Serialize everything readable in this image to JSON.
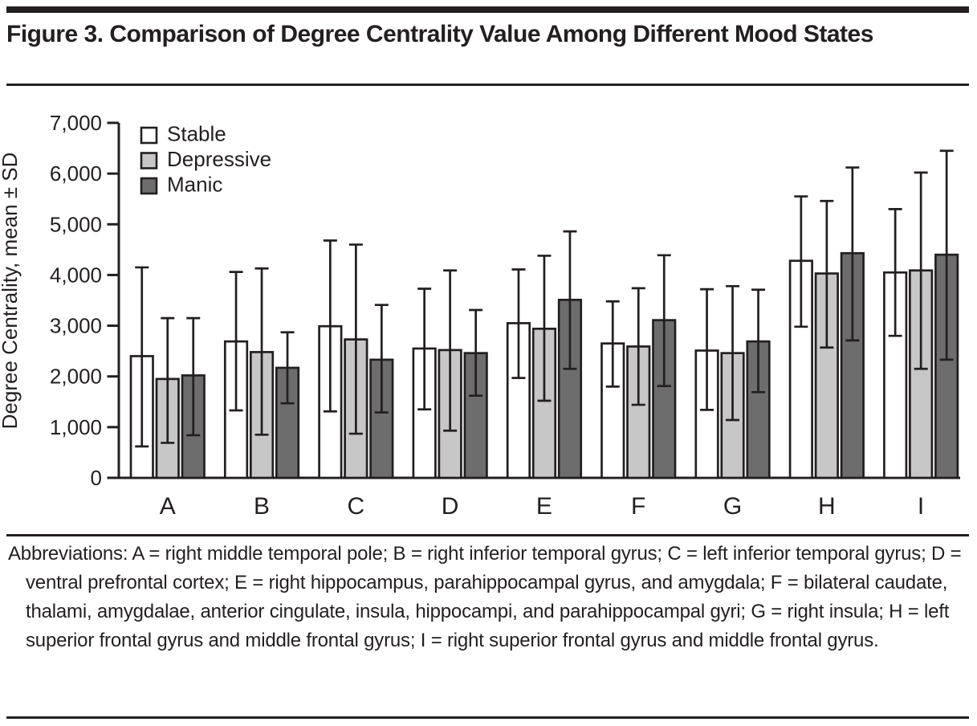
{
  "page": {
    "title": "Figure 3. Comparison of Degree Centrality Value Among Different Mood States",
    "footnote": "Abbreviations: A = right middle temporal pole; B = right inferior temporal gyrus; C = left inferior temporal gyrus; D = ventral prefrontal cortex; E = right hippocampus, parahippocampal gyrus, and amygdala; F = bilateral caudate, thalami, amygdalae, anterior cingulate, insula, hippocampi, and parahippocampal gyri; G = right insula; H = left superior frontal gyrus and middle frontal gyrus; I = right superior frontal gyrus and middle frontal gyrus."
  },
  "colors": {
    "text": "#231f20",
    "rule": "#231f20",
    "bar_outline": "#231f20",
    "stable_fill": "#ffffff",
    "depressive_fill": "#c7c7c7",
    "manic_fill": "#6d6d6d"
  },
  "chart_data": {
    "type": "bar",
    "title": "",
    "xlabel": "",
    "ylabel": "Degree Centrality, mean ± SD",
    "categories": [
      "A",
      "B",
      "C",
      "D",
      "E",
      "F",
      "G",
      "H",
      "I"
    ],
    "ylim": [
      0,
      7000
    ],
    "ytick_step": 1000,
    "ytick_labels": [
      "0",
      "1,000",
      "2,000",
      "3,000",
      "4,000",
      "5,000",
      "6,000",
      "7,000"
    ],
    "grid": false,
    "legend_position": "top-left-inside",
    "error_bars": "mean ± SD whiskers with caps",
    "series": [
      {
        "name": "Stable",
        "fill": "#ffffff",
        "values": [
          2400,
          2690,
          2990,
          2550,
          3050,
          2650,
          2510,
          4280,
          4050
        ],
        "err_low": [
          620,
          1330,
          1310,
          1350,
          1970,
          1800,
          1340,
          2980,
          2800
        ],
        "err_high": [
          4150,
          4060,
          4680,
          3730,
          4110,
          3480,
          3720,
          5550,
          5300
        ]
      },
      {
        "name": "Depressive",
        "fill": "#c7c7c7",
        "values": [
          1950,
          2480,
          2730,
          2520,
          2940,
          2590,
          2460,
          4030,
          4090
        ],
        "err_low": [
          690,
          850,
          870,
          930,
          1520,
          1440,
          1140,
          2570,
          2150
        ],
        "err_high": [
          3150,
          4130,
          4600,
          4090,
          4380,
          3740,
          3780,
          5460,
          6020
        ]
      },
      {
        "name": "Manic",
        "fill": "#6d6d6d",
        "values": [
          2020,
          2170,
          2330,
          2460,
          3510,
          3110,
          2690,
          4430,
          4400
        ],
        "err_low": [
          840,
          1470,
          1290,
          1620,
          2150,
          1810,
          1690,
          2710,
          2330
        ],
        "err_high": [
          3150,
          2870,
          3410,
          3310,
          4860,
          4390,
          3710,
          6120,
          6450
        ]
      }
    ]
  }
}
